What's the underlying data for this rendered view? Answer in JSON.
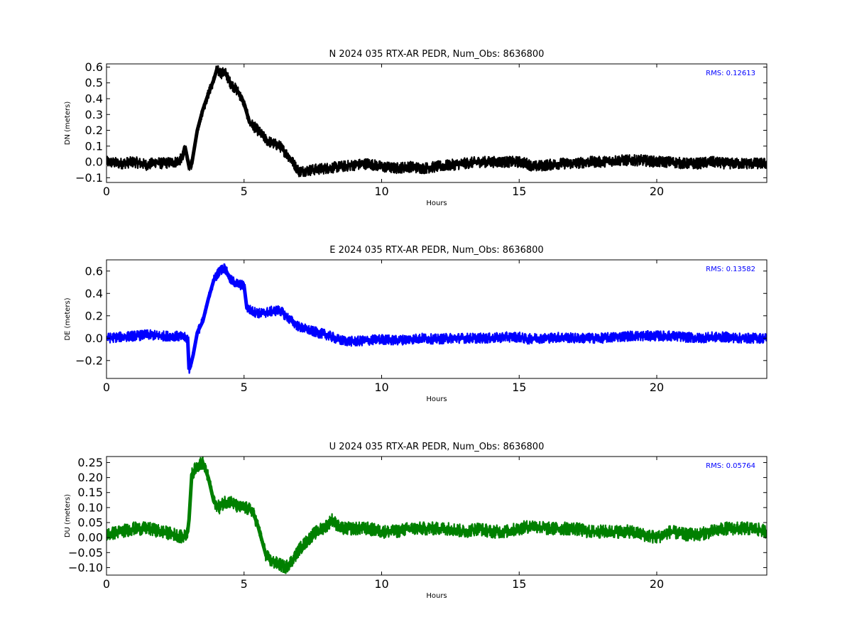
{
  "chart_data": [
    {
      "type": "line",
      "title": "N 2024 035 RTX-AR  PEDR, Num_Obs: 8636800",
      "xlabel": "Hours",
      "ylabel": "DN (meters)",
      "xlim": [
        0,
        24
      ],
      "ylim": [
        -0.13,
        0.62
      ],
      "xticks": [
        0,
        5,
        10,
        15,
        20
      ],
      "yticks": [
        -0.1,
        0.0,
        0.1,
        0.2,
        0.3,
        0.4,
        0.5,
        0.6
      ],
      "ytick_labels": [
        "−0.1",
        "0.0",
        "0.1",
        "0.2",
        "0.3",
        "0.4",
        "0.5",
        "0.6"
      ],
      "grid": false,
      "color": "#000000",
      "annotation": "RMS:  0.12613",
      "annotation_color": "#0000ff",
      "series": [
        {
          "x": [
            0,
            0.5,
            1.0,
            1.5,
            1.8,
            2.0,
            2.5,
            2.75,
            2.85,
            3.0,
            3.1,
            3.3,
            3.5,
            3.7,
            3.9,
            4.0,
            4.1,
            4.2,
            4.3,
            4.5,
            4.8,
            5.0,
            5.2,
            5.5,
            5.8,
            6.0,
            6.3,
            6.6,
            7.0,
            7.5,
            8.0,
            8.5,
            9.0,
            9.5,
            10.0,
            10.5,
            11.0,
            11.5,
            12.0,
            12.5,
            13.0,
            13.5,
            14.0,
            14.5,
            15.0,
            15.3,
            15.5,
            16.0,
            16.5,
            17.0,
            17.5,
            18.0,
            18.5,
            19.0,
            19.5,
            20.0,
            20.5,
            21.0,
            21.5,
            22.0,
            22.5,
            23.0,
            23.5,
            24.0
          ],
          "y": [
            0.0,
            -0.01,
            0.0,
            -0.02,
            0.0,
            -0.01,
            0.0,
            0.02,
            0.1,
            -0.03,
            -0.01,
            0.2,
            0.33,
            0.43,
            0.52,
            0.58,
            0.57,
            0.56,
            0.57,
            0.5,
            0.44,
            0.37,
            0.25,
            0.2,
            0.14,
            0.12,
            0.1,
            0.04,
            -0.06,
            -0.05,
            -0.04,
            -0.03,
            -0.02,
            -0.01,
            -0.03,
            -0.04,
            -0.03,
            -0.04,
            -0.03,
            -0.02,
            -0.01,
            0.0,
            0.0,
            0.0,
            0.0,
            -0.01,
            -0.03,
            -0.02,
            -0.01,
            -0.01,
            0.0,
            0.0,
            0.01,
            0.01,
            0.01,
            0.0,
            0.0,
            -0.01,
            -0.01,
            0.0,
            -0.01,
            -0.01,
            -0.01,
            -0.01
          ],
          "band": 0.035
        }
      ]
    },
    {
      "type": "line",
      "title": "E 2024 035 RTX-AR  PEDR, Num_Obs: 8636800",
      "xlabel": "Hours",
      "ylabel": "DE (meters)",
      "xlim": [
        0,
        24
      ],
      "ylim": [
        -0.36,
        0.7
      ],
      "xticks": [
        0,
        5,
        10,
        15,
        20
      ],
      "yticks": [
        -0.2,
        0.0,
        0.2,
        0.4,
        0.6
      ],
      "ytick_labels": [
        "−0.2",
        "0.0",
        "0.2",
        "0.4",
        "0.6"
      ],
      "grid": false,
      "color": "#0000ff",
      "annotation": "RMS:  0.13582",
      "annotation_color": "#0000ff",
      "series": [
        {
          "x": [
            0,
            0.5,
            1.0,
            1.5,
            2.0,
            2.5,
            2.95,
            3.0,
            3.05,
            3.15,
            3.3,
            3.5,
            3.7,
            3.9,
            4.1,
            4.3,
            4.5,
            4.8,
            5.0,
            5.1,
            5.3,
            5.6,
            6.0,
            6.3,
            6.6,
            7.0,
            7.5,
            8.0,
            8.5,
            9.0,
            9.5,
            10.0,
            10.5,
            11.0,
            11.5,
            12.0,
            12.5,
            13.0,
            13.5,
            14.0,
            14.5,
            15.0,
            15.3,
            15.5,
            16.0,
            16.5,
            17.0,
            17.5,
            18.0,
            18.5,
            19.0,
            19.5,
            20.0,
            20.5,
            21.0,
            21.5,
            22.0,
            22.5,
            23.0,
            23.5,
            24.0
          ],
          "y": [
            0.0,
            0.01,
            0.02,
            0.03,
            0.02,
            0.02,
            0.0,
            -0.28,
            -0.25,
            -0.15,
            0.05,
            0.15,
            0.35,
            0.52,
            0.6,
            0.63,
            0.52,
            0.48,
            0.47,
            0.27,
            0.24,
            0.22,
            0.24,
            0.25,
            0.18,
            0.1,
            0.06,
            0.03,
            -0.02,
            -0.03,
            -0.02,
            -0.01,
            -0.02,
            -0.01,
            0.0,
            -0.01,
            0.0,
            0.0,
            0.0,
            0.0,
            0.01,
            0.01,
            -0.01,
            0.0,
            0.0,
            0.01,
            0.0,
            0.0,
            0.0,
            0.01,
            0.02,
            0.02,
            0.02,
            0.02,
            0.01,
            0.0,
            0.01,
            0.01,
            0.0,
            0.0,
            0.0
          ],
          "band": 0.045
        }
      ]
    },
    {
      "type": "line",
      "title": "U 2024 035 RTX-AR  PEDR, Num_Obs: 8636800",
      "xlabel": "Hours",
      "ylabel": "DU (meters)",
      "xlim": [
        0,
        24
      ],
      "ylim": [
        -0.125,
        0.27
      ],
      "xticks": [
        0,
        5,
        10,
        15,
        20
      ],
      "yticks": [
        -0.1,
        -0.05,
        0.0,
        0.05,
        0.1,
        0.15,
        0.2,
        0.25
      ],
      "ytick_labels": [
        "−0.10",
        "−0.05",
        "0.00",
        "0.05",
        "0.10",
        "0.15",
        "0.20",
        "0.25"
      ],
      "grid": false,
      "color": "#008000",
      "annotation": "RMS:  0.05764",
      "annotation_color": "#0000ff",
      "series": [
        {
          "x": [
            0,
            0.5,
            1.0,
            1.5,
            2.0,
            2.5,
            2.8,
            2.95,
            3.0,
            3.1,
            3.3,
            3.5,
            3.7,
            3.9,
            4.1,
            4.3,
            4.5,
            4.8,
            5.0,
            5.3,
            5.5,
            5.8,
            6.0,
            6.3,
            6.5,
            6.8,
            7.0,
            7.5,
            8.0,
            8.2,
            8.5,
            9.0,
            9.5,
            10.0,
            10.5,
            11.0,
            11.5,
            12.0,
            12.5,
            13.0,
            13.5,
            14.0,
            14.5,
            15.0,
            15.5,
            16.0,
            16.5,
            17.0,
            17.5,
            18.0,
            18.5,
            19.0,
            19.5,
            20.0,
            20.5,
            21.0,
            21.5,
            22.0,
            22.5,
            23.0,
            23.5,
            24.0
          ],
          "y": [
            0.01,
            0.02,
            0.03,
            0.03,
            0.02,
            0.01,
            0.0,
            0.02,
            0.06,
            0.21,
            0.24,
            0.25,
            0.2,
            0.12,
            0.1,
            0.12,
            0.12,
            0.1,
            0.1,
            0.09,
            0.04,
            -0.06,
            -0.08,
            -0.09,
            -0.1,
            -0.07,
            -0.04,
            0.01,
            0.04,
            0.06,
            0.03,
            0.03,
            0.03,
            0.02,
            0.02,
            0.03,
            0.03,
            0.03,
            0.03,
            0.02,
            0.03,
            0.02,
            0.02,
            0.03,
            0.04,
            0.03,
            0.03,
            0.03,
            0.02,
            0.02,
            0.02,
            0.02,
            0.01,
            0.0,
            0.02,
            0.01,
            0.01,
            0.02,
            0.03,
            0.03,
            0.03,
            0.02
          ],
          "band": 0.022
        }
      ]
    }
  ]
}
